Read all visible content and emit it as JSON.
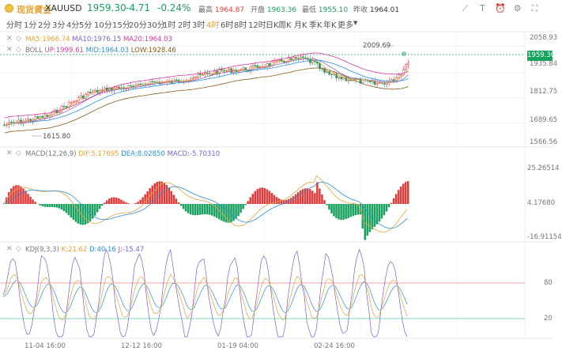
{
  "header": {
    "symbol_cn": "现货黄金",
    "symbol_en": "XAUUSD",
    "price": "1959.30",
    "change": "-4.71",
    "change_pct": "-0.24%",
    "high_label": "最高",
    "high_value": "1964.87",
    "open_label": "开盘",
    "open_value": "1963.36",
    "low_label": "最低",
    "low_value": "1955.10",
    "prev_close_label": "昨收",
    "prev_close_value": "1964.01",
    "icons": [
      "draw-line-icon",
      "text-tool-icon",
      "alert-icon",
      "settings-icon",
      "fullscreen-icon"
    ]
  },
  "timeframes": [
    "分时",
    "1分",
    "2分",
    "3分",
    "4分",
    "5分",
    "10分",
    "15分",
    "20分",
    "30分",
    "1时",
    "2时",
    "3时",
    "4时",
    "6时",
    "8时",
    "12时",
    "日K",
    "周K",
    "月K",
    "季K",
    "年K",
    "更多"
  ],
  "timeframe_active": "4时",
  "price_panel": {
    "ma_name": "MA5:1966.74",
    "ma10": "MA10:1976.15",
    "ma20": "MA20:1964.03",
    "boll_name": "BOLL",
    "boll_up": "UP:1999.61",
    "boll_mid": "MID:1964.03",
    "boll_low": "LOW:1928.46",
    "y_ticks": [
      "2058.93",
      "1935.84",
      "1812.75",
      "1689.65",
      "1566.56"
    ],
    "current_tag": "1959.30",
    "high_marker": "2009.69",
    "low_marker": "1615.80"
  },
  "macd_panel": {
    "name": "MACD(12,26,9)",
    "dif": "DIF:5.17695",
    "dea": "DEA:8.02850",
    "macd": "MACD:-5.70310",
    "y_ticks": [
      "25.26514",
      "4.17680",
      "-16.91154"
    ]
  },
  "kdj_panel": {
    "name": "KDJ(9,3,3)",
    "k": "K:21.62",
    "d": "D:40.16",
    "j": "J:-15.47",
    "y_ticks": [
      "80",
      "20"
    ]
  },
  "x_axis": [
    "11-04 16:00",
    "12-12 16:00",
    "01-19 04:00",
    "02-24 16:00"
  ],
  "colors": {
    "up": "#e03c3c",
    "down": "#19a15f",
    "accent": "#e6a23c",
    "ma5": "#e6a23c",
    "ma10": "#7b5fd6",
    "ma20": "#d63c9e",
    "boll_up": "#d63c9e",
    "boll_mid": "#2b8fd6",
    "boll_low": "#8a5a1a"
  }
}
